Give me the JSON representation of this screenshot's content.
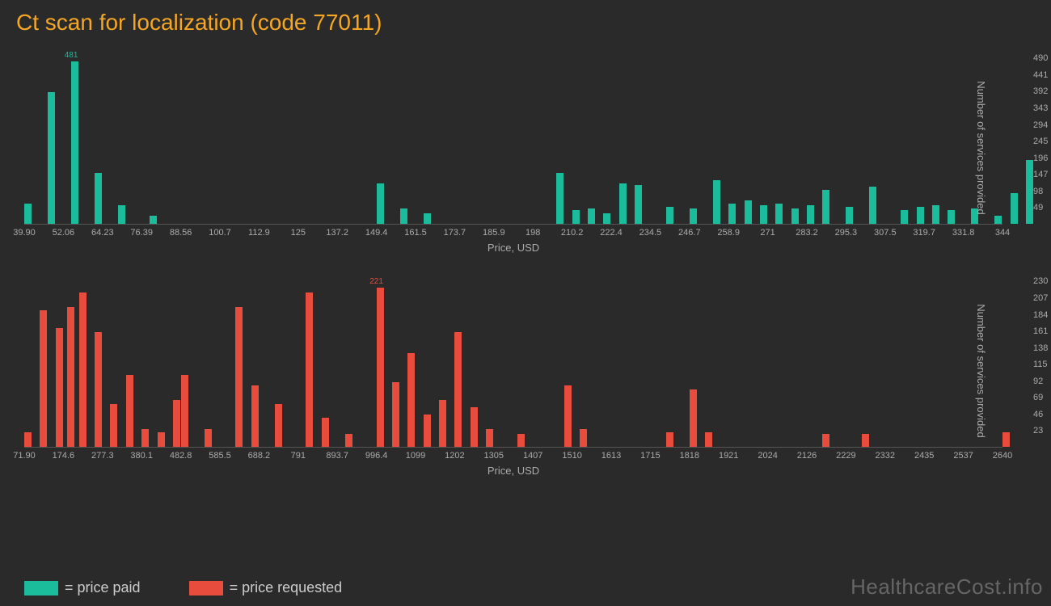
{
  "title": "Ct scan for localization (code 77011)",
  "watermark": "HealthcareCost.info",
  "colors": {
    "background": "#2a2a2a",
    "title": "#f5a623",
    "paid": "#1abc9c",
    "requested": "#e74c3c",
    "axis_text": "#aaaaaa",
    "axis_line": "#555555"
  },
  "legend": {
    "paid": "= price paid",
    "requested": "= price requested"
  },
  "top_chart": {
    "type": "bar",
    "x_label": "Price, USD",
    "y_label": "Number of services provided",
    "x_ticks": [
      "39.90",
      "52.06",
      "64.23",
      "76.39",
      "88.56",
      "100.7",
      "112.9",
      "125",
      "137.2",
      "149.4",
      "161.5",
      "173.7",
      "185.9",
      "198",
      "210.2",
      "222.4",
      "234.5",
      "246.7",
      "258.9",
      "271",
      "283.2",
      "295.3",
      "307.5",
      "319.7",
      "331.8",
      "344"
    ],
    "y_ticks": [
      49,
      98,
      147,
      196,
      245,
      294,
      343,
      392,
      441,
      490
    ],
    "y_max": 500,
    "peak": {
      "value": 481,
      "x_index": 1.2
    },
    "bars": [
      {
        "x": 0.0,
        "v": 60
      },
      {
        "x": 0.6,
        "v": 390
      },
      {
        "x": 1.2,
        "v": 481
      },
      {
        "x": 1.8,
        "v": 150
      },
      {
        "x": 2.4,
        "v": 55
      },
      {
        "x": 3.2,
        "v": 25
      },
      {
        "x": 9.0,
        "v": 120
      },
      {
        "x": 9.6,
        "v": 45
      },
      {
        "x": 10.2,
        "v": 30
      },
      {
        "x": 13.6,
        "v": 150
      },
      {
        "x": 14.0,
        "v": 40
      },
      {
        "x": 14.4,
        "v": 45
      },
      {
        "x": 14.8,
        "v": 30
      },
      {
        "x": 15.2,
        "v": 120
      },
      {
        "x": 15.6,
        "v": 115
      },
      {
        "x": 16.4,
        "v": 50
      },
      {
        "x": 17.0,
        "v": 45
      },
      {
        "x": 17.6,
        "v": 130
      },
      {
        "x": 18.0,
        "v": 60
      },
      {
        "x": 18.4,
        "v": 70
      },
      {
        "x": 18.8,
        "v": 55
      },
      {
        "x": 19.2,
        "v": 60
      },
      {
        "x": 19.6,
        "v": 45
      },
      {
        "x": 20.0,
        "v": 55
      },
      {
        "x": 20.4,
        "v": 100
      },
      {
        "x": 21.0,
        "v": 50
      },
      {
        "x": 21.6,
        "v": 110
      },
      {
        "x": 22.4,
        "v": 40
      },
      {
        "x": 22.8,
        "v": 50
      },
      {
        "x": 23.2,
        "v": 55
      },
      {
        "x": 23.6,
        "v": 40
      },
      {
        "x": 24.2,
        "v": 45
      },
      {
        "x": 24.8,
        "v": 25
      },
      {
        "x": 25.2,
        "v": 90
      },
      {
        "x": 25.6,
        "v": 190
      }
    ]
  },
  "bottom_chart": {
    "type": "bar",
    "x_label": "Price, USD",
    "y_label": "Number of services provided",
    "x_ticks": [
      "71.90",
      "174.6",
      "277.3",
      "380.1",
      "482.8",
      "585.5",
      "688.2",
      "791",
      "893.7",
      "996.4",
      "1099",
      "1202",
      "1305",
      "1407",
      "1510",
      "1613",
      "1715",
      "1818",
      "1921",
      "2024",
      "2126",
      "2229",
      "2332",
      "2435",
      "2537",
      "2640"
    ],
    "y_ticks": [
      23,
      46,
      69,
      92,
      115,
      138,
      161,
      184,
      207,
      230
    ],
    "y_max": 235,
    "peak": {
      "value": 221,
      "x_index": 9.0
    },
    "bars": [
      {
        "x": 0.0,
        "v": 20
      },
      {
        "x": 0.4,
        "v": 190
      },
      {
        "x": 0.8,
        "v": 165
      },
      {
        "x": 1.1,
        "v": 195
      },
      {
        "x": 1.4,
        "v": 215
      },
      {
        "x": 1.8,
        "v": 160
      },
      {
        "x": 2.2,
        "v": 60
      },
      {
        "x": 2.6,
        "v": 100
      },
      {
        "x": 3.0,
        "v": 25
      },
      {
        "x": 3.4,
        "v": 20
      },
      {
        "x": 3.8,
        "v": 65
      },
      {
        "x": 4.0,
        "v": 100
      },
      {
        "x": 4.6,
        "v": 25
      },
      {
        "x": 5.4,
        "v": 195
      },
      {
        "x": 5.8,
        "v": 85
      },
      {
        "x": 6.4,
        "v": 60
      },
      {
        "x": 7.2,
        "v": 215
      },
      {
        "x": 7.6,
        "v": 40
      },
      {
        "x": 8.2,
        "v": 18
      },
      {
        "x": 9.0,
        "v": 221
      },
      {
        "x": 9.4,
        "v": 90
      },
      {
        "x": 9.8,
        "v": 130
      },
      {
        "x": 10.2,
        "v": 45
      },
      {
        "x": 10.6,
        "v": 65
      },
      {
        "x": 11.0,
        "v": 160
      },
      {
        "x": 11.4,
        "v": 55
      },
      {
        "x": 11.8,
        "v": 25
      },
      {
        "x": 12.6,
        "v": 18
      },
      {
        "x": 13.8,
        "v": 85
      },
      {
        "x": 14.2,
        "v": 25
      },
      {
        "x": 16.4,
        "v": 20
      },
      {
        "x": 17.0,
        "v": 80
      },
      {
        "x": 17.4,
        "v": 20
      },
      {
        "x": 20.4,
        "v": 18
      },
      {
        "x": 21.4,
        "v": 18
      },
      {
        "x": 25.0,
        "v": 20
      }
    ]
  }
}
